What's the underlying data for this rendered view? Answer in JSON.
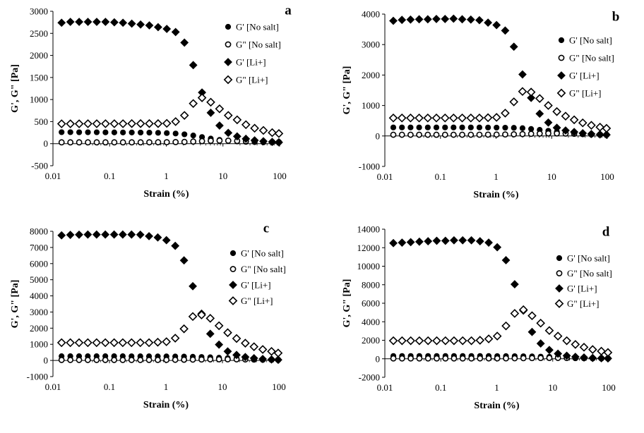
{
  "chart_data": [
    {
      "type": "scatter",
      "panel": "a",
      "xlabel": "Strain (%)",
      "ylabel": "G', G\" [Pa]",
      "xscale": "log",
      "xlim": [
        0.01,
        100
      ],
      "ylim": [
        -500,
        3000
      ],
      "x_ticks": [
        "0.01",
        "0.1",
        "1",
        "10",
        "100"
      ],
      "y_ticks": [
        "-500",
        "0",
        "500",
        "1000",
        "1500",
        "2000",
        "2500",
        "3000"
      ],
      "y_tick_values": [
        -500,
        0,
        500,
        1000,
        1500,
        2000,
        2500,
        3000
      ],
      "grid": false,
      "legend_position": "top-right",
      "x": [
        0.0142,
        0.0203,
        0.029,
        0.0414,
        0.0592,
        0.0845,
        0.121,
        0.172,
        0.246,
        0.352,
        0.502,
        0.717,
        1.02,
        1.46,
        2.09,
        2.99,
        4.27,
        6.09,
        8.7,
        12.4,
        17.8,
        25.4,
        36.2,
        51.7,
        73.9,
        97.0
      ],
      "series": [
        {
          "name": "G' [No salt]",
          "marker": "filled-circle",
          "values": [
            260,
            260,
            258,
            258,
            258,
            256,
            255,
            254,
            253,
            252,
            250,
            246,
            240,
            230,
            212,
            185,
            150,
            115,
            85,
            65,
            50,
            40,
            35,
            30,
            28,
            27
          ]
        },
        {
          "name": "G\" [No salt]",
          "marker": "open-circle",
          "values": [
            30,
            30,
            30,
            30,
            30,
            30,
            30,
            30,
            30,
            30,
            31,
            32,
            33,
            36,
            40,
            48,
            58,
            66,
            70,
            68,
            62,
            55,
            48,
            42,
            37,
            34
          ]
        },
        {
          "name": "G' [Li+]",
          "marker": "filled-diamond",
          "values": [
            2740,
            2760,
            2760,
            2760,
            2760,
            2760,
            2750,
            2740,
            2720,
            2700,
            2680,
            2640,
            2600,
            2530,
            2290,
            1780,
            1160,
            700,
            410,
            245,
            165,
            110,
            75,
            55,
            40,
            30
          ]
        },
        {
          "name": "G\" [Li+]",
          "marker": "open-diamond",
          "values": [
            450,
            450,
            450,
            452,
            452,
            452,
            452,
            452,
            455,
            455,
            455,
            455,
            460,
            500,
            640,
            910,
            1040,
            940,
            790,
            640,
            540,
            430,
            350,
            300,
            250,
            230
          ]
        }
      ]
    },
    {
      "type": "scatter",
      "panel": "b",
      "xlabel": "Strain (%)",
      "ylabel": "G', G\" [Pa]",
      "xscale": "log",
      "xlim": [
        0.01,
        100
      ],
      "ylim": [
        -1000,
        4000
      ],
      "x_ticks": [
        "0.01",
        "0.1",
        "1",
        "10",
        "100"
      ],
      "y_ticks": [
        "-1000",
        "0",
        "1000",
        "2000",
        "3000",
        "4000"
      ],
      "y_tick_values": [
        -1000,
        0,
        1000,
        2000,
        3000,
        4000
      ],
      "grid": false,
      "legend_position": "top-right",
      "x": [
        0.0142,
        0.0203,
        0.029,
        0.0414,
        0.0592,
        0.0845,
        0.121,
        0.172,
        0.246,
        0.352,
        0.502,
        0.717,
        1.02,
        1.46,
        2.09,
        2.99,
        4.27,
        6.09,
        8.7,
        12.4,
        17.8,
        25.4,
        36.2,
        51.7,
        73.9,
        97.0
      ],
      "series": [
        {
          "name": "G' [No salt]",
          "marker": "filled-circle",
          "values": [
            280,
            280,
            280,
            280,
            280,
            280,
            280,
            280,
            280,
            280,
            280,
            278,
            275,
            272,
            268,
            255,
            230,
            200,
            170,
            140,
            110,
            85,
            65,
            50,
            40,
            30
          ]
        },
        {
          "name": "G\" [No salt]",
          "marker": "open-circle",
          "values": [
            40,
            40,
            40,
            40,
            40,
            40,
            40,
            40,
            40,
            40,
            42,
            44,
            46,
            50,
            55,
            62,
            70,
            78,
            84,
            84,
            80,
            72,
            62,
            54,
            46,
            40
          ]
        },
        {
          "name": "G' [Li+]",
          "marker": "filled-diamond",
          "values": [
            3780,
            3810,
            3820,
            3830,
            3830,
            3840,
            3840,
            3850,
            3830,
            3820,
            3800,
            3720,
            3640,
            3460,
            2930,
            2020,
            1250,
            730,
            440,
            270,
            180,
            130,
            90,
            65,
            50,
            40
          ]
        },
        {
          "name": "G\" [Li+]",
          "marker": "open-diamond",
          "values": [
            590,
            590,
            590,
            590,
            590,
            590,
            590,
            590,
            590,
            590,
            590,
            600,
            610,
            750,
            1120,
            1460,
            1440,
            1230,
            1000,
            800,
            650,
            530,
            430,
            350,
            290,
            250
          ]
        }
      ]
    },
    {
      "type": "scatter",
      "panel": "c",
      "xlabel": "Strain (%)",
      "ylabel": "G', G\" [Pa]",
      "xscale": "log",
      "xlim": [
        0.01,
        100
      ],
      "ylim": [
        -1000,
        8000
      ],
      "x_ticks": [
        "0.01",
        "0.1",
        "1",
        "10",
        "100"
      ],
      "y_ticks": [
        "-1000",
        "0",
        "1000",
        "2000",
        "3000",
        "4000",
        "5000",
        "6000",
        "7000",
        "8000"
      ],
      "y_tick_values": [
        -1000,
        0,
        1000,
        2000,
        3000,
        4000,
        5000,
        6000,
        7000,
        8000
      ],
      "grid": false,
      "legend_position": "center-right",
      "x": [
        0.0142,
        0.0203,
        0.029,
        0.0414,
        0.0592,
        0.0845,
        0.121,
        0.172,
        0.246,
        0.352,
        0.502,
        0.717,
        1.02,
        1.46,
        2.09,
        2.99,
        4.27,
        6.09,
        8.7,
        12.4,
        17.8,
        25.4,
        36.2,
        51.7,
        73.9,
        97.0
      ],
      "series": [
        {
          "name": "G' [No salt]",
          "marker": "filled-circle",
          "values": [
            260,
            260,
            260,
            260,
            260,
            260,
            260,
            260,
            258,
            256,
            255,
            252,
            250,
            245,
            240,
            230,
            215,
            195,
            170,
            145,
            120,
            95,
            75,
            55,
            45,
            35
          ]
        },
        {
          "name": "G\" [No salt]",
          "marker": "open-circle",
          "values": [
            30,
            30,
            30,
            30,
            30,
            30,
            30,
            30,
            30,
            30,
            32,
            34,
            36,
            40,
            45,
            52,
            60,
            68,
            72,
            72,
            68,
            62,
            55,
            48,
            42,
            36
          ]
        },
        {
          "name": "G' [Li+]",
          "marker": "filled-diamond",
          "values": [
            7750,
            7780,
            7790,
            7800,
            7800,
            7800,
            7800,
            7800,
            7800,
            7790,
            7700,
            7620,
            7450,
            7100,
            6200,
            4600,
            2900,
            1650,
            980,
            560,
            340,
            210,
            140,
            90,
            60,
            40
          ]
        },
        {
          "name": "G\" [Li+]",
          "marker": "open-diamond",
          "values": [
            1100,
            1100,
            1100,
            1100,
            1100,
            1100,
            1100,
            1100,
            1100,
            1100,
            1100,
            1130,
            1160,
            1380,
            1960,
            2720,
            2820,
            2610,
            2150,
            1720,
            1360,
            1070,
            850,
            680,
            560,
            460
          ]
        }
      ]
    },
    {
      "type": "scatter",
      "panel": "d",
      "xlabel": "Strain (%)",
      "ylabel": "G', G\" [Pa]",
      "xscale": "log",
      "xlim": [
        0.01,
        100
      ],
      "ylim": [
        -2000,
        14000
      ],
      "x_ticks": [
        "0.01",
        "0.1",
        "1",
        "10",
        "100"
      ],
      "y_ticks": [
        "-2000",
        "0",
        "2000",
        "4000",
        "6000",
        "8000",
        "10000",
        "12000",
        "14000"
      ],
      "y_tick_values": [
        -2000,
        0,
        2000,
        4000,
        6000,
        8000,
        10000,
        12000,
        14000
      ],
      "grid": false,
      "legend_position": "center-right",
      "x": [
        0.0142,
        0.0203,
        0.029,
        0.0414,
        0.0592,
        0.0845,
        0.121,
        0.172,
        0.246,
        0.352,
        0.502,
        0.717,
        1.02,
        1.46,
        2.09,
        2.99,
        4.27,
        6.09,
        8.7,
        12.4,
        17.8,
        25.4,
        36.2,
        51.7,
        73.9,
        97.0
      ],
      "series": [
        {
          "name": "G' [No salt]",
          "marker": "filled-circle",
          "values": [
            300,
            300,
            300,
            300,
            300,
            300,
            300,
            300,
            300,
            300,
            300,
            295,
            290,
            285,
            280,
            270,
            255,
            235,
            210,
            180,
            150,
            120,
            95,
            75,
            60,
            50
          ]
        },
        {
          "name": "G\" [No salt]",
          "marker": "open-circle",
          "values": [
            40,
            40,
            40,
            40,
            40,
            40,
            40,
            40,
            40,
            40,
            42,
            44,
            46,
            50,
            56,
            64,
            74,
            84,
            90,
            90,
            85,
            78,
            68,
            58,
            50,
            42
          ]
        },
        {
          "name": "G' [Li+]",
          "marker": "filled-diamond",
          "values": [
            12500,
            12550,
            12600,
            12650,
            12700,
            12750,
            12750,
            12800,
            12800,
            12800,
            12700,
            12550,
            12050,
            10650,
            8050,
            5200,
            2900,
            1650,
            950,
            550,
            330,
            210,
            140,
            90,
            60,
            40
          ]
        },
        {
          "name": "G\" [Li+]",
          "marker": "open-diamond",
          "values": [
            1950,
            1950,
            1950,
            1950,
            1950,
            1950,
            1950,
            1950,
            1950,
            1950,
            2000,
            2150,
            2450,
            3550,
            4900,
            5300,
            4650,
            3850,
            3050,
            2450,
            1950,
            1550,
            1250,
            1000,
            820,
            680
          ]
        }
      ]
    }
  ]
}
